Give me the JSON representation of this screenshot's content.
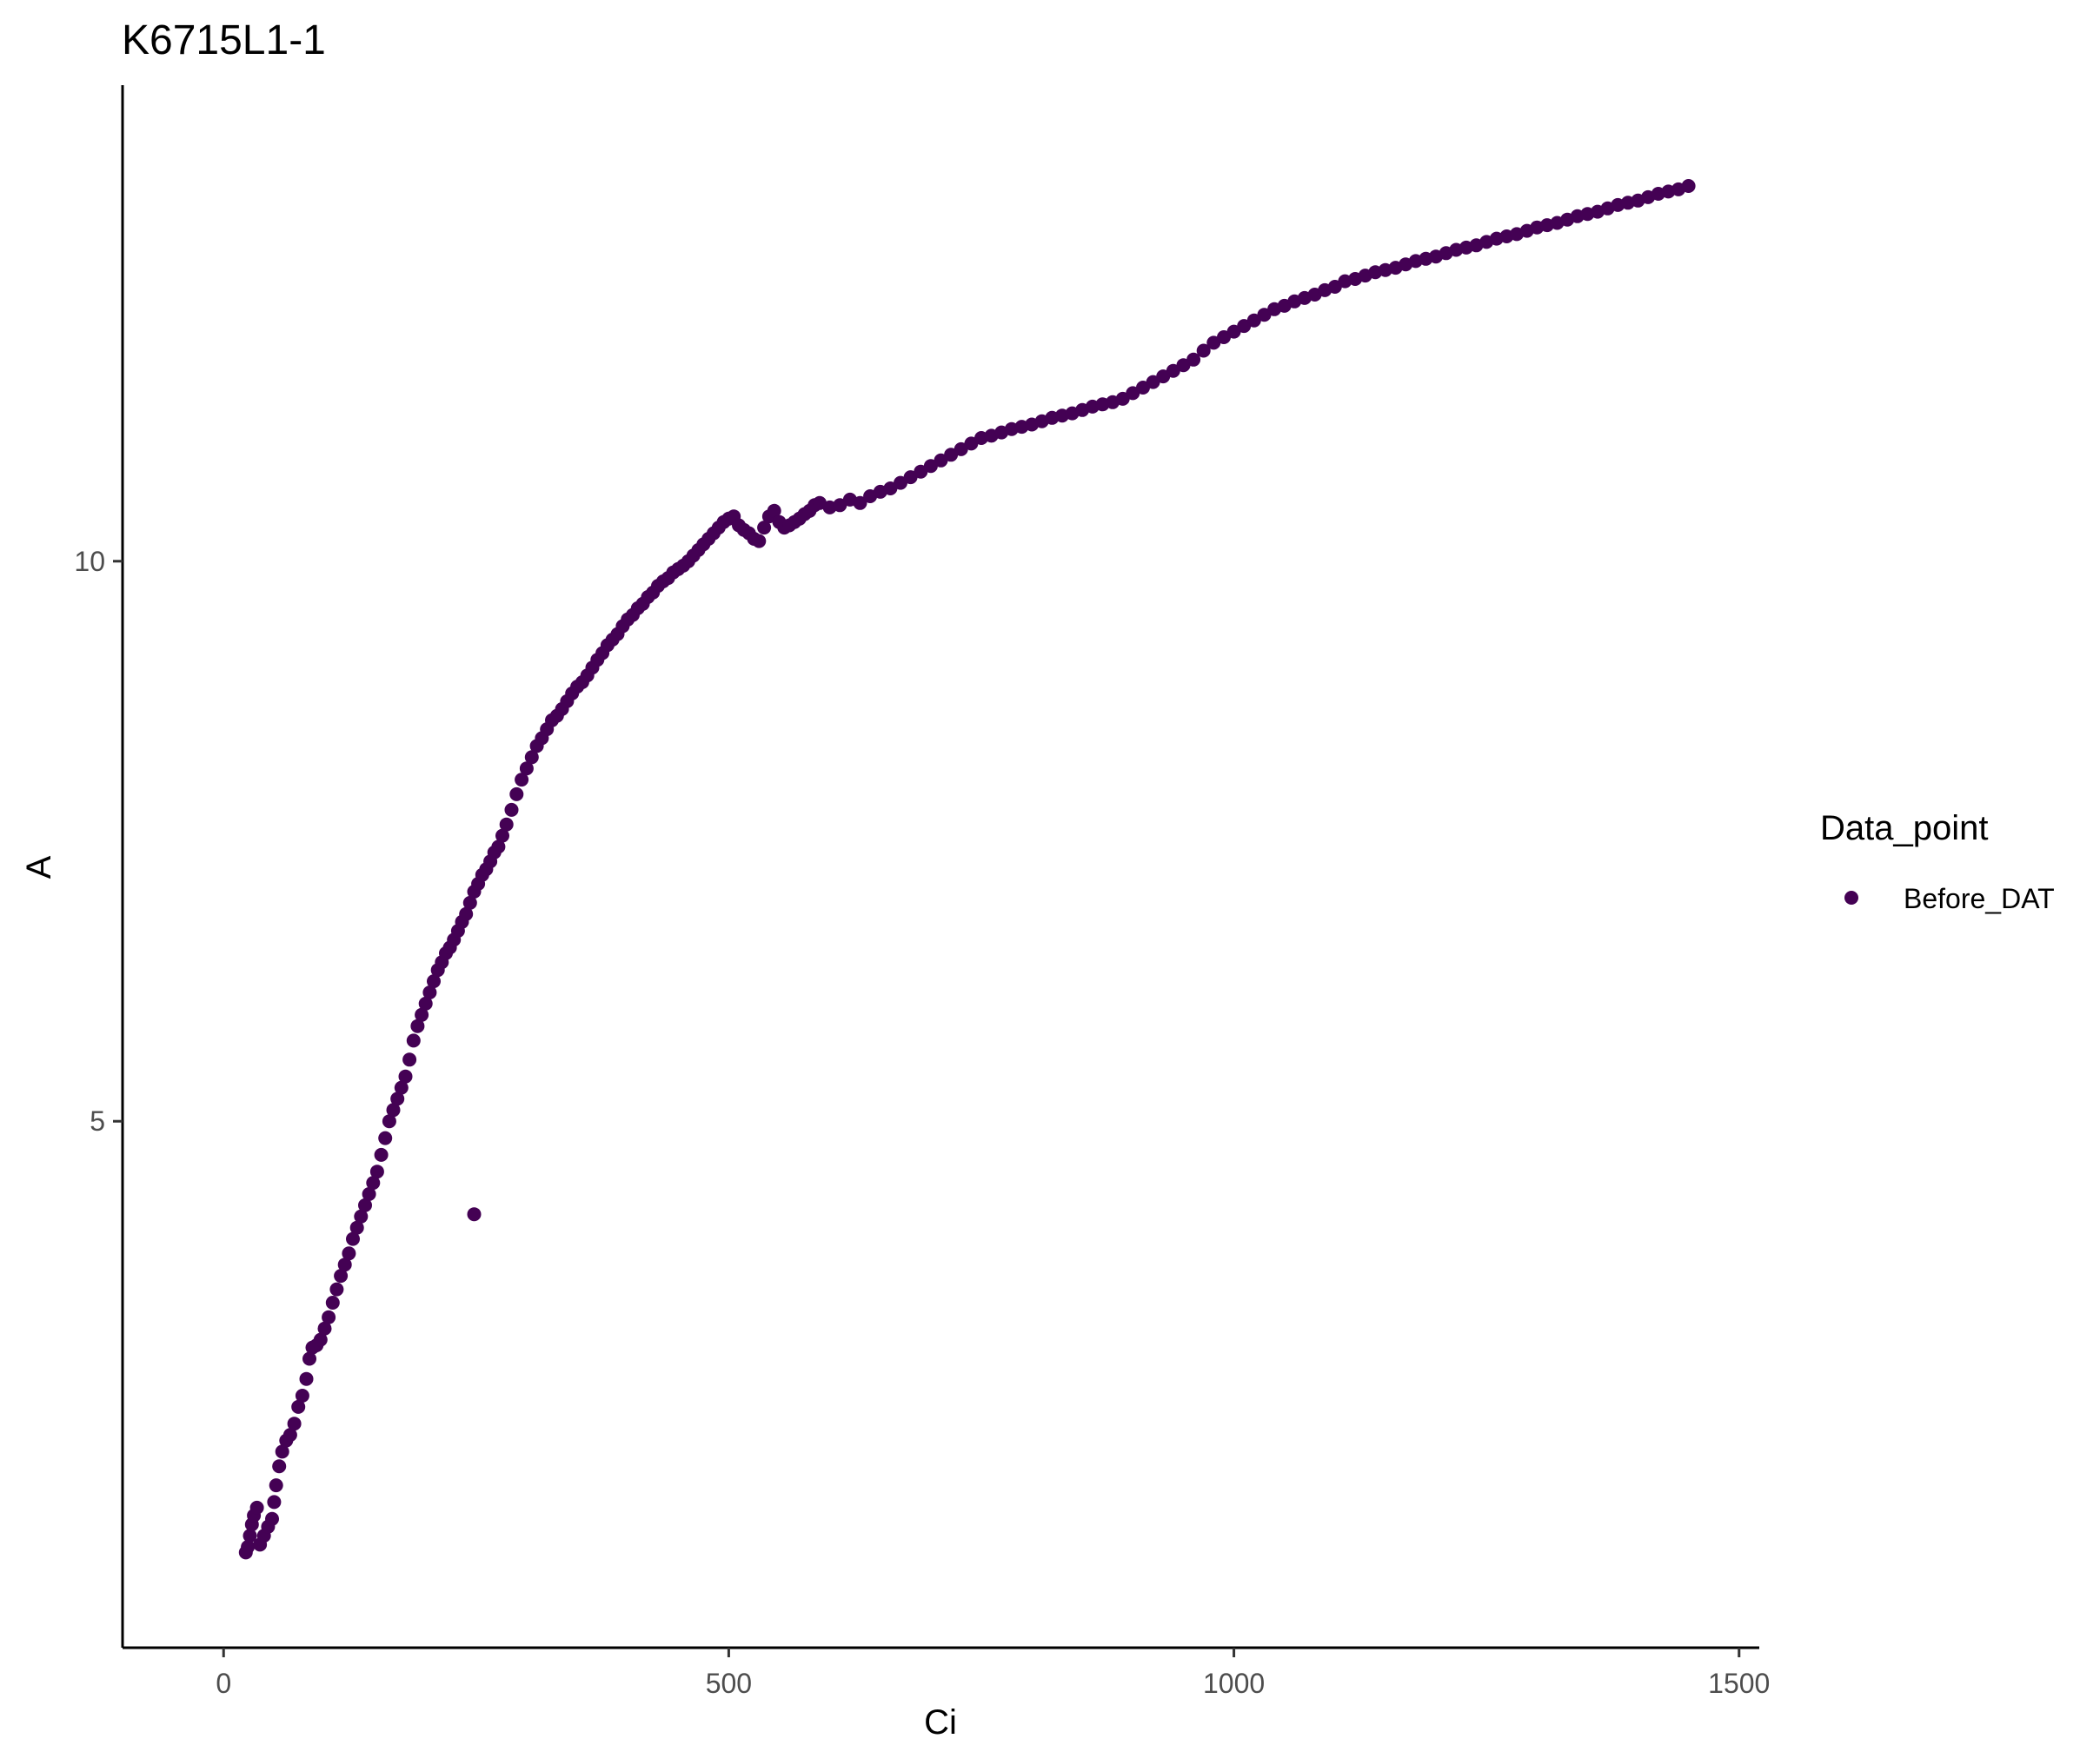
{
  "chart_data": {
    "type": "scatter",
    "title": "K6715L1-1",
    "xlabel": "Ci",
    "ylabel": "A",
    "xlim": [
      -100,
      1520
    ],
    "ylim": [
      0.3,
      14.25
    ],
    "x_ticks": [
      0,
      500,
      1000,
      1500
    ],
    "y_ticks": [
      5,
      10
    ],
    "grid": false,
    "legend": {
      "title": "Data_point",
      "position": "right",
      "entries": [
        "Before_DAT"
      ]
    },
    "colors": {
      "Before_DAT": "#440154"
    },
    "series": [
      {
        "name": "Before_DAT",
        "points": [
          [
            22,
            1.15
          ],
          [
            24,
            1.2
          ],
          [
            26,
            1.3
          ],
          [
            28,
            1.4
          ],
          [
            30,
            1.48
          ],
          [
            33,
            1.55
          ],
          [
            36,
            1.22
          ],
          [
            40,
            1.3
          ],
          [
            44,
            1.38
          ],
          [
            48,
            1.45
          ],
          [
            50,
            1.6
          ],
          [
            52,
            1.75
          ],
          [
            55,
            1.92
          ],
          [
            58,
            2.05
          ],
          [
            62,
            2.15
          ],
          [
            66,
            2.2
          ],
          [
            70,
            2.3
          ],
          [
            74,
            2.45
          ],
          [
            78,
            2.55
          ],
          [
            82,
            2.7
          ],
          [
            85,
            2.88
          ],
          [
            88,
            2.98
          ],
          [
            92,
            3.0
          ],
          [
            96,
            3.05
          ],
          [
            100,
            3.15
          ],
          [
            104,
            3.25
          ],
          [
            108,
            3.38
          ],
          [
            112,
            3.5
          ],
          [
            116,
            3.62
          ],
          [
            120,
            3.72
          ],
          [
            124,
            3.82
          ],
          [
            128,
            3.95
          ],
          [
            132,
            4.05
          ],
          [
            136,
            4.15
          ],
          [
            140,
            4.25
          ],
          [
            144,
            4.35
          ],
          [
            148,
            4.45
          ],
          [
            152,
            4.55
          ],
          [
            156,
            4.7
          ],
          [
            160,
            4.85
          ],
          [
            164,
            5.0
          ],
          [
            168,
            5.1
          ],
          [
            172,
            5.2
          ],
          [
            176,
            5.3
          ],
          [
            180,
            5.4
          ],
          [
            184,
            5.55
          ],
          [
            188,
            5.72
          ],
          [
            192,
            5.85
          ],
          [
            196,
            5.95
          ],
          [
            200,
            6.05
          ],
          [
            204,
            6.15
          ],
          [
            208,
            6.25
          ],
          [
            212,
            6.35
          ],
          [
            216,
            6.42
          ],
          [
            220,
            6.5
          ],
          [
            224,
            6.55
          ],
          [
            228,
            6.62
          ],
          [
            232,
            6.7
          ],
          [
            236,
            6.78
          ],
          [
            240,
            6.85
          ],
          [
            244,
            6.95
          ],
          [
            248,
            7.05
          ],
          [
            252,
            7.12
          ],
          [
            256,
            7.2
          ],
          [
            260,
            7.25
          ],
          [
            264,
            7.32
          ],
          [
            268,
            7.4
          ],
          [
            272,
            7.45
          ],
          [
            276,
            7.55
          ],
          [
            280,
            7.65
          ],
          [
            285,
            7.78
          ],
          [
            290,
            7.92
          ],
          [
            295,
            8.05
          ],
          [
            300,
            8.15
          ],
          [
            305,
            8.25
          ],
          [
            310,
            8.35
          ],
          [
            315,
            8.42
          ],
          [
            320,
            8.5
          ],
          [
            325,
            8.58
          ],
          [
            330,
            8.62
          ],
          [
            335,
            8.68
          ],
          [
            340,
            8.75
          ],
          [
            345,
            8.82
          ],
          [
            350,
            8.88
          ],
          [
            355,
            8.92
          ],
          [
            360,
            8.98
          ],
          [
            365,
            9.05
          ],
          [
            370,
            9.12
          ],
          [
            375,
            9.18
          ],
          [
            380,
            9.25
          ],
          [
            385,
            9.3
          ],
          [
            390,
            9.35
          ],
          [
            395,
            9.42
          ],
          [
            400,
            9.48
          ],
          [
            405,
            9.52
          ],
          [
            410,
            9.58
          ],
          [
            415,
            9.62
          ],
          [
            420,
            9.68
          ],
          [
            425,
            9.72
          ],
          [
            430,
            9.78
          ],
          [
            435,
            9.82
          ],
          [
            440,
            9.85
          ],
          [
            445,
            9.9
          ],
          [
            450,
            9.93
          ],
          [
            455,
            9.96
          ],
          [
            460,
            10.0
          ],
          [
            465,
            10.05
          ],
          [
            470,
            10.1
          ],
          [
            475,
            10.15
          ],
          [
            480,
            10.2
          ],
          [
            485,
            10.25
          ],
          [
            490,
            10.3
          ],
          [
            495,
            10.35
          ],
          [
            500,
            10.38
          ],
          [
            505,
            10.4
          ],
          [
            510,
            10.32
          ],
          [
            515,
            10.28
          ],
          [
            520,
            10.25
          ],
          [
            525,
            10.2
          ],
          [
            530,
            10.18
          ],
          [
            535,
            10.3
          ],
          [
            540,
            10.4
          ],
          [
            545,
            10.45
          ],
          [
            550,
            10.35
          ],
          [
            555,
            10.3
          ],
          [
            560,
            10.32
          ],
          [
            565,
            10.35
          ],
          [
            570,
            10.38
          ],
          [
            575,
            10.42
          ],
          [
            580,
            10.45
          ],
          [
            585,
            10.5
          ],
          [
            590,
            10.52
          ],
          [
            600,
            10.48
          ],
          [
            610,
            10.5
          ],
          [
            620,
            10.55
          ],
          [
            630,
            10.52
          ],
          [
            640,
            10.58
          ],
          [
            650,
            10.62
          ],
          [
            660,
            10.65
          ],
          [
            670,
            10.7
          ],
          [
            680,
            10.75
          ],
          [
            690,
            10.8
          ],
          [
            700,
            10.85
          ],
          [
            710,
            10.9
          ],
          [
            720,
            10.95
          ],
          [
            730,
            11.0
          ],
          [
            740,
            11.05
          ],
          [
            750,
            11.1
          ],
          [
            760,
            11.12
          ],
          [
            770,
            11.15
          ],
          [
            780,
            11.18
          ],
          [
            790,
            11.2
          ],
          [
            800,
            11.22
          ],
          [
            810,
            11.25
          ],
          [
            820,
            11.28
          ],
          [
            830,
            11.3
          ],
          [
            840,
            11.32
          ],
          [
            850,
            11.35
          ],
          [
            860,
            11.38
          ],
          [
            870,
            11.4
          ],
          [
            880,
            11.42
          ],
          [
            890,
            11.45
          ],
          [
            900,
            11.5
          ],
          [
            910,
            11.55
          ],
          [
            920,
            11.6
          ],
          [
            930,
            11.65
          ],
          [
            940,
            11.7
          ],
          [
            950,
            11.75
          ],
          [
            960,
            11.8
          ],
          [
            970,
            11.88
          ],
          [
            980,
            11.95
          ],
          [
            990,
            12.0
          ],
          [
            1000,
            12.05
          ],
          [
            1010,
            12.1
          ],
          [
            1020,
            12.15
          ],
          [
            1030,
            12.2
          ],
          [
            1040,
            12.25
          ],
          [
            1050,
            12.28
          ],
          [
            1060,
            12.32
          ],
          [
            1070,
            12.35
          ],
          [
            1080,
            12.38
          ],
          [
            1090,
            12.42
          ],
          [
            1100,
            12.45
          ],
          [
            1110,
            12.5
          ],
          [
            1120,
            12.52
          ],
          [
            1130,
            12.55
          ],
          [
            1140,
            12.58
          ],
          [
            1150,
            12.6
          ],
          [
            1160,
            12.62
          ],
          [
            1170,
            12.65
          ],
          [
            1180,
            12.68
          ],
          [
            1190,
            12.7
          ],
          [
            1200,
            12.72
          ],
          [
            1210,
            12.75
          ],
          [
            1220,
            12.78
          ],
          [
            1230,
            12.8
          ],
          [
            1240,
            12.82
          ],
          [
            1250,
            12.85
          ],
          [
            1260,
            12.88
          ],
          [
            1270,
            12.9
          ],
          [
            1280,
            12.92
          ],
          [
            1290,
            12.95
          ],
          [
            1300,
            12.98
          ],
          [
            1310,
            13.0
          ],
          [
            1320,
            13.02
          ],
          [
            1330,
            13.05
          ],
          [
            1340,
            13.08
          ],
          [
            1350,
            13.1
          ],
          [
            1360,
            13.12
          ],
          [
            1370,
            13.15
          ],
          [
            1380,
            13.18
          ],
          [
            1390,
            13.2
          ],
          [
            1400,
            13.22
          ],
          [
            1410,
            13.25
          ],
          [
            1420,
            13.28
          ],
          [
            1430,
            13.3
          ],
          [
            1440,
            13.32
          ],
          [
            1450,
            13.35
          ],
          [
            248,
            4.17
          ]
        ]
      }
    ]
  }
}
